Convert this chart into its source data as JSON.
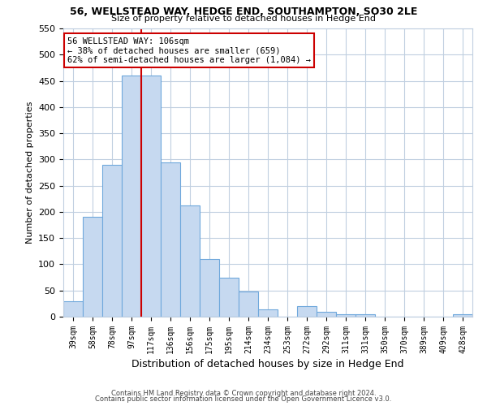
{
  "title1": "56, WELLSTEAD WAY, HEDGE END, SOUTHAMPTON, SO30 2LE",
  "title2": "Size of property relative to detached houses in Hedge End",
  "xlabel": "Distribution of detached houses by size in Hedge End",
  "ylabel": "Number of detached properties",
  "categories": [
    "39sqm",
    "58sqm",
    "78sqm",
    "97sqm",
    "117sqm",
    "136sqm",
    "156sqm",
    "175sqm",
    "195sqm",
    "214sqm",
    "234sqm",
    "253sqm",
    "272sqm",
    "292sqm",
    "311sqm",
    "331sqm",
    "350sqm",
    "370sqm",
    "389sqm",
    "409sqm",
    "428sqm"
  ],
  "values": [
    30,
    190,
    290,
    460,
    460,
    295,
    213,
    110,
    75,
    48,
    14,
    0,
    20,
    10,
    5,
    5,
    0,
    0,
    0,
    0,
    5
  ],
  "bar_color": "#c6d9f0",
  "bar_edge_color": "#6fa8dc",
  "vline_x": 3.5,
  "vline_color": "#cc0000",
  "annotation_text": "56 WELLSTEAD WAY: 106sqm\n← 38% of detached houses are smaller (659)\n62% of semi-detached houses are larger (1,084) →",
  "annotation_box_color": "#cc0000",
  "ylim": [
    0,
    550
  ],
  "yticks": [
    0,
    50,
    100,
    150,
    200,
    250,
    300,
    350,
    400,
    450,
    500,
    550
  ],
  "footer1": "Contains HM Land Registry data © Crown copyright and database right 2024.",
  "footer2": "Contains public sector information licensed under the Open Government Licence v3.0.",
  "bg_color": "#ffffff",
  "grid_color": "#c0cfe0"
}
